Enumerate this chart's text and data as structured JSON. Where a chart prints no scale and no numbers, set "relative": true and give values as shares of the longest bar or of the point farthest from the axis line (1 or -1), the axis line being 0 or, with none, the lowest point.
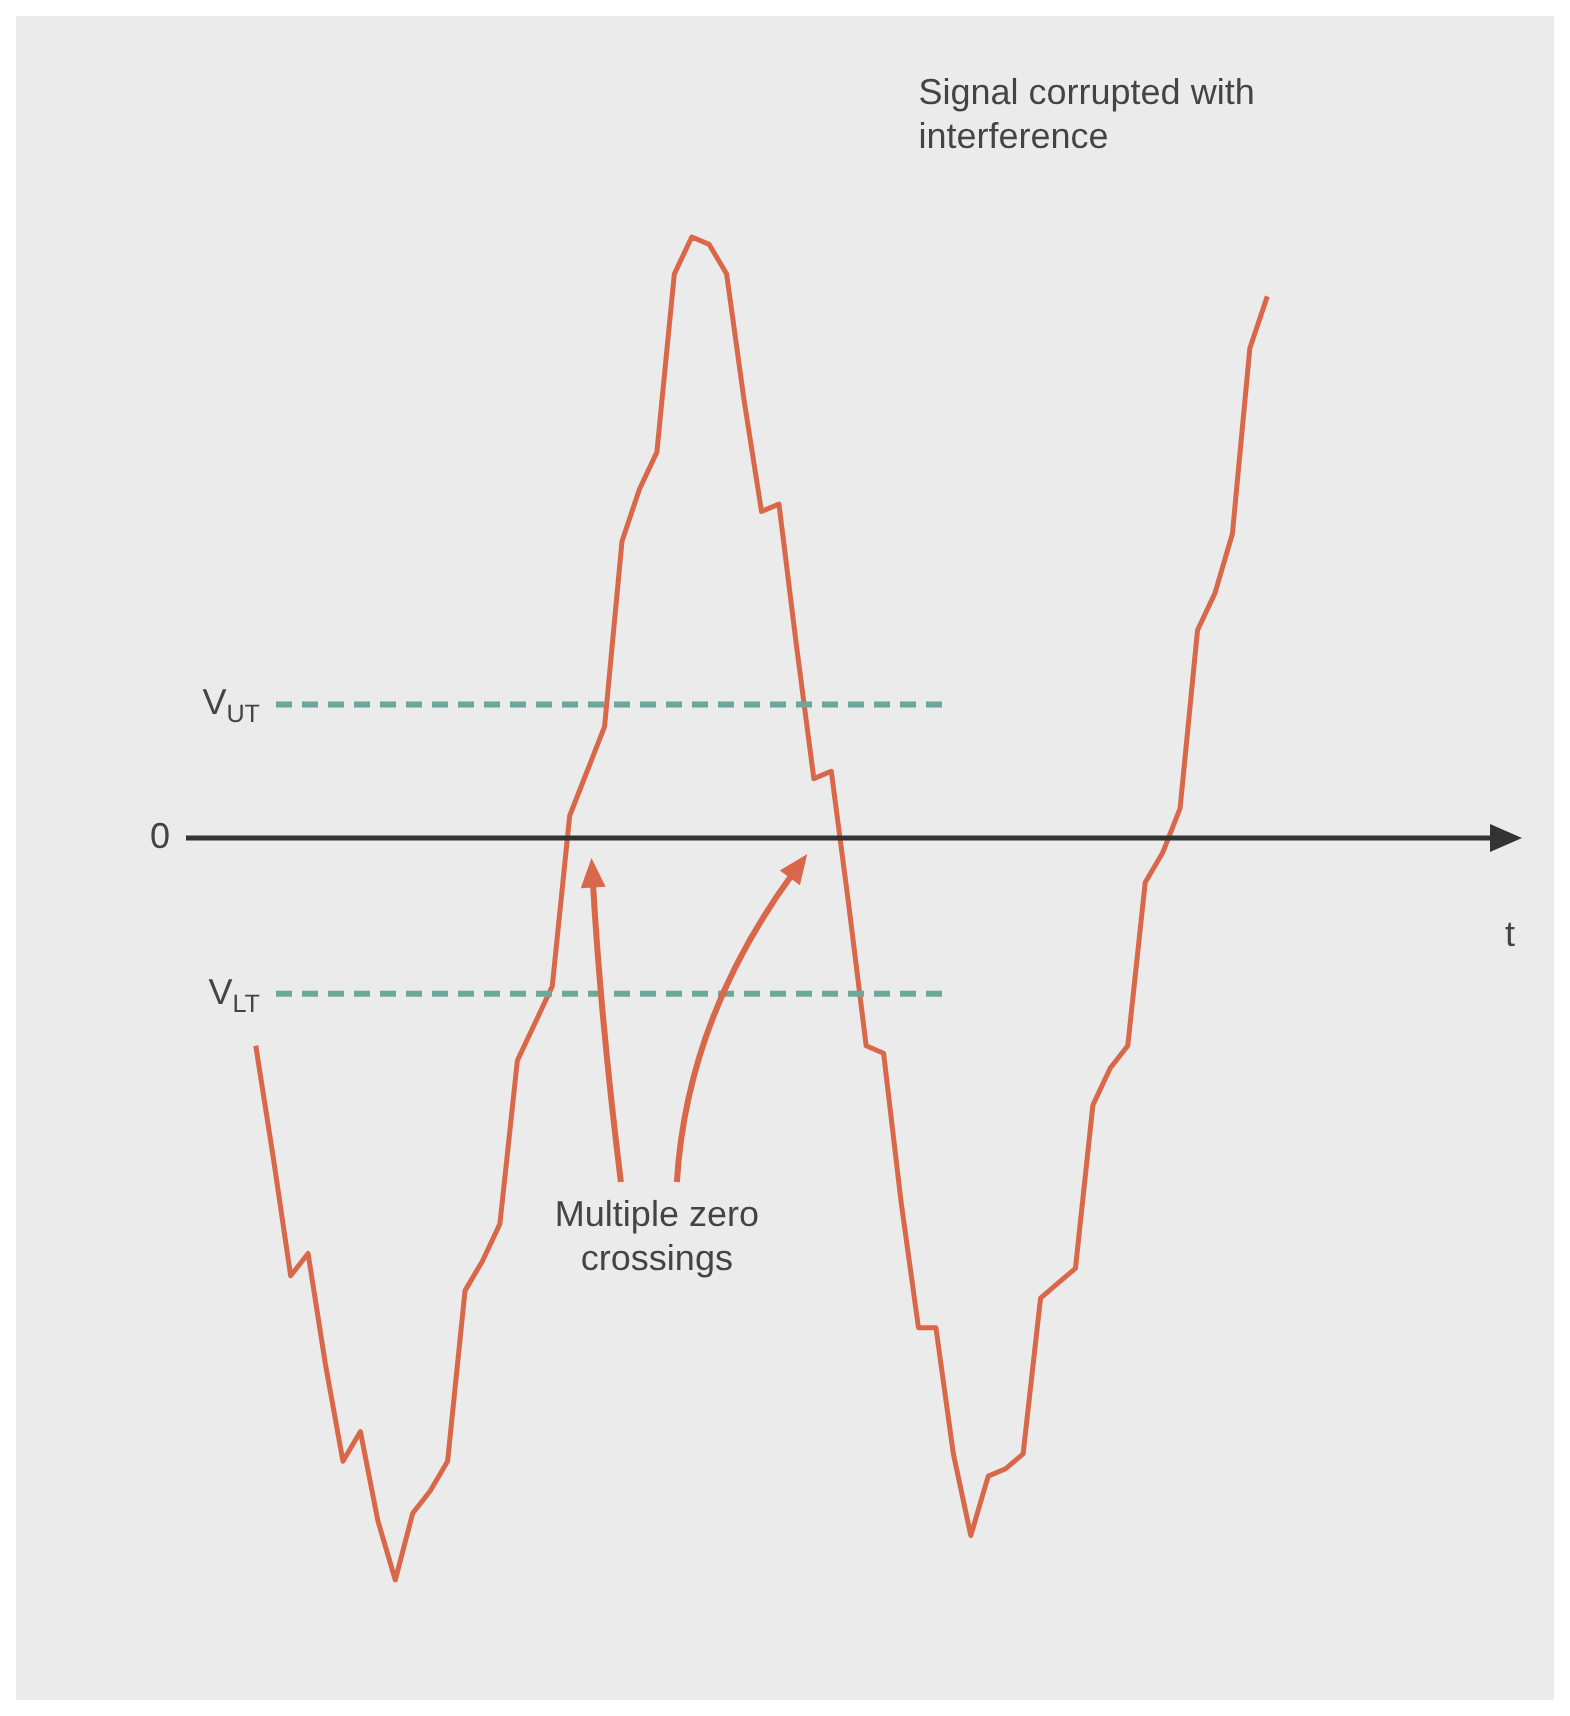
{
  "chart_data": {
    "type": "line",
    "relative": true,
    "xlabel": "t",
    "categories": [
      null,
      null,
      null,
      null,
      null,
      null,
      null,
      null,
      null,
      null,
      null,
      null,
      null,
      null,
      null,
      null,
      null,
      null,
      null,
      null,
      null,
      null,
      null,
      null,
      null,
      null,
      null,
      null,
      null,
      null,
      null,
      null,
      null,
      null,
      null,
      null,
      null,
      null,
      null,
      null,
      null,
      null,
      null,
      null,
      null,
      null,
      null,
      null,
      null,
      null,
      null,
      null,
      null,
      null,
      null,
      null,
      null,
      null,
      null,
      null,
      null,
      null,
      null,
      null,
      null,
      null,
      null,
      null,
      null,
      null,
      null,
      null,
      null,
      null,
      null,
      null
    ],
    "series": [
      {
        "color": "#d9674a",
        "values": [
          null,
          null,
          null,
          null,
          -0.28,
          -0.43,
          -0.59,
          -0.56,
          -0.71,
          -0.84,
          -0.8,
          -0.92,
          -1.0,
          -0.91,
          -0.88,
          -0.84,
          -0.61,
          -0.57,
          -0.52,
          -0.3,
          -0.25,
          -0.2,
          0.03,
          0.09,
          0.15,
          0.4,
          0.47,
          0.52,
          0.76,
          0.81,
          0.8,
          0.76,
          0.59,
          0.44,
          0.45,
          0.26,
          0.08,
          0.09,
          -0.09,
          -0.28,
          -0.29,
          -0.49,
          -0.66,
          -0.66,
          -0.83,
          -0.94,
          -0.86,
          -0.85,
          -0.83,
          -0.62,
          -0.6,
          -0.58,
          -0.36,
          -0.31,
          -0.28,
          -0.06,
          -0.02,
          0.04,
          0.28,
          0.33,
          0.41,
          0.66,
          0.73,
          null,
          null,
          null,
          null,
          null,
          null,
          null,
          null,
          null,
          null,
          null,
          null,
          null
        ]
      }
    ],
    "ref_lines": [
      {
        "axis": "y",
        "value": 0.18,
        "label": "V$_{UT}$",
        "color": "#6aa89a",
        "line_style": "dashed"
      },
      {
        "axis": "y",
        "value": 0,
        "label": "0",
        "color": "#333333",
        "line_style": "solid"
      },
      {
        "axis": "y",
        "value": -0.21,
        "label": "V$_{LT}$",
        "color": "#6aa89a",
        "line_style": "dashed"
      }
    ],
    "annotations": [
      "Signal corrupted with interference",
      "Multiple zero crossings"
    ],
    "grid": false,
    "legend": false,
    "marker": "none",
    "line_style": "solid"
  }
}
